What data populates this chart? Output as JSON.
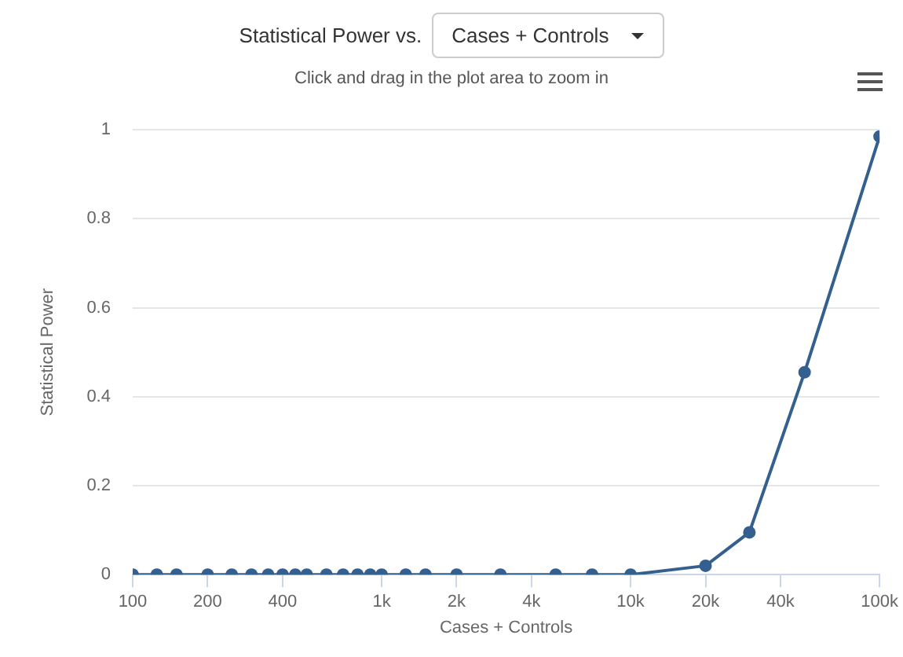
{
  "chart_data": {
    "type": "line",
    "title": "Statistical Power vs.",
    "subtitle": "Click and drag in the plot area to zoom in",
    "xlabel": "Cases + Controls",
    "ylabel": "Statistical Power",
    "x": [
      100,
      125,
      150,
      200,
      250,
      300,
      350,
      400,
      450,
      500,
      600,
      700,
      800,
      900,
      1000,
      1250,
      1500,
      2000,
      3000,
      5000,
      7000,
      10000,
      20000,
      30000,
      50000,
      100000
    ],
    "series": [
      {
        "color": "#34608f",
        "values": [
          0,
          0,
          0,
          0,
          0,
          0,
          0,
          0,
          0,
          0,
          0,
          0,
          0,
          0,
          0,
          0,
          0,
          0,
          0,
          0,
          0,
          0,
          0.02,
          0.095,
          0.455,
          0.985
        ]
      }
    ],
    "log": "x",
    "xlim": [
      100,
      100000
    ],
    "xticks": [
      100,
      200,
      400,
      {
        "value": 1000,
        "label": "1k"
      },
      {
        "value": 2000,
        "label": "2k"
      },
      {
        "value": 4000,
        "label": "4k"
      },
      {
        "value": 10000,
        "label": "10k"
      },
      {
        "value": 20000,
        "label": "20k"
      },
      {
        "value": 40000,
        "label": "40k"
      },
      {
        "value": 100000,
        "label": "100k"
      }
    ],
    "ylim": [
      0,
      1
    ],
    "yticks": [
      0,
      0.2,
      0.4,
      0.6,
      0.8,
      1
    ],
    "grid": "y",
    "legend": false,
    "marker": "circle",
    "line_style": "solid"
  }
}
